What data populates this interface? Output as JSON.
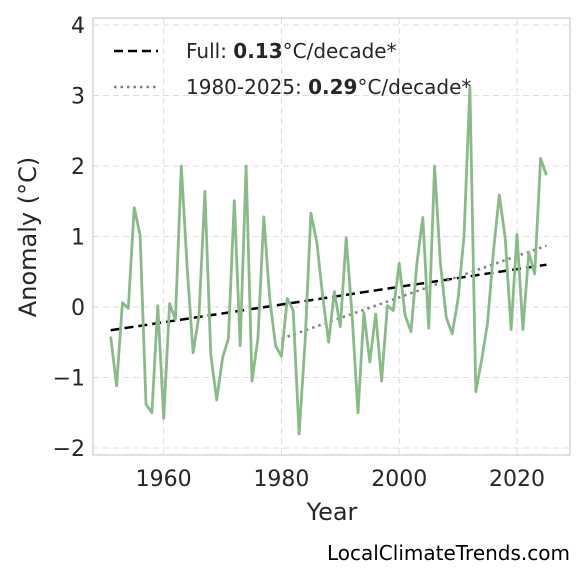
{
  "chart_data": {
    "type": "line",
    "xlabel": "Year",
    "ylabel": "Anomaly (°C)",
    "xlim": [
      1948,
      2029
    ],
    "ylim": [
      -2.1,
      4.1
    ],
    "xticks": [
      1960,
      1980,
      2000,
      2020
    ],
    "yticks": [
      -2,
      -1,
      0,
      1,
      2,
      3,
      4
    ],
    "ytick_labels": [
      "−2",
      "−1",
      "0",
      "1",
      "2",
      "3",
      "4"
    ],
    "grid": true,
    "legend_position": "top-left",
    "series": [
      {
        "name": "anomaly",
        "color": "#88bb88",
        "x": [
          1951,
          1952,
          1953,
          1954,
          1955,
          1956,
          1957,
          1958,
          1959,
          1960,
          1961,
          1962,
          1963,
          1964,
          1965,
          1966,
          1967,
          1968,
          1969,
          1970,
          1971,
          1972,
          1973,
          1974,
          1975,
          1976,
          1977,
          1978,
          1979,
          1980,
          1981,
          1982,
          1983,
          1984,
          1985,
          1986,
          1987,
          1988,
          1989,
          1990,
          1991,
          1992,
          1993,
          1994,
          1995,
          1996,
          1997,
          1998,
          1999,
          2000,
          2001,
          2002,
          2003,
          2004,
          2005,
          2006,
          2007,
          2008,
          2009,
          2010,
          2011,
          2012,
          2013,
          2014,
          2015,
          2016,
          2017,
          2018,
          2019,
          2020,
          2021,
          2022,
          2023,
          2024,
          2025
        ],
        "y": [
          -0.42,
          -1.12,
          0.06,
          -0.02,
          1.41,
          1.02,
          -1.38,
          -1.5,
          0.02,
          -1.58,
          0.05,
          -0.18,
          2.0,
          0.55,
          -0.65,
          -0.12,
          1.64,
          -0.68,
          -1.32,
          -0.72,
          -0.45,
          1.51,
          -0.55,
          2.0,
          -1.05,
          -0.45,
          1.28,
          0.12,
          -0.55,
          -0.7,
          0.12,
          -0.05,
          -1.8,
          -0.52,
          1.33,
          0.92,
          0.15,
          -0.5,
          0.22,
          -0.28,
          0.98,
          -0.12,
          -1.5,
          -0.08,
          -0.78,
          -0.1,
          -1.05,
          0.02,
          -0.05,
          0.62,
          -0.12,
          -0.35,
          0.62,
          1.27,
          -0.3,
          2.0,
          0.62,
          -0.15,
          -0.38,
          0.12,
          1.0,
          3.12,
          -1.2,
          -0.75,
          -0.22,
          0.78,
          1.59,
          0.98,
          -0.32,
          1.03,
          -0.32,
          0.77,
          0.47,
          2.11,
          1.87
        ]
      }
    ],
    "trends": [
      {
        "label_prefix": "Full: ",
        "label_value": "0.13",
        "label_suffix": "°C/decade*",
        "style": "dashed",
        "color": "#000000",
        "x": [
          1951,
          2025
        ],
        "y": [
          -0.33,
          0.6
        ]
      },
      {
        "label_prefix": "1980-2025: ",
        "label_value": "0.29",
        "label_suffix": "°C/decade*",
        "style": "dotted",
        "color": "#808080",
        "x": [
          1980,
          2025
        ],
        "y": [
          -0.45,
          0.87
        ]
      }
    ]
  },
  "watermark": "LocalClimateTrends.com"
}
